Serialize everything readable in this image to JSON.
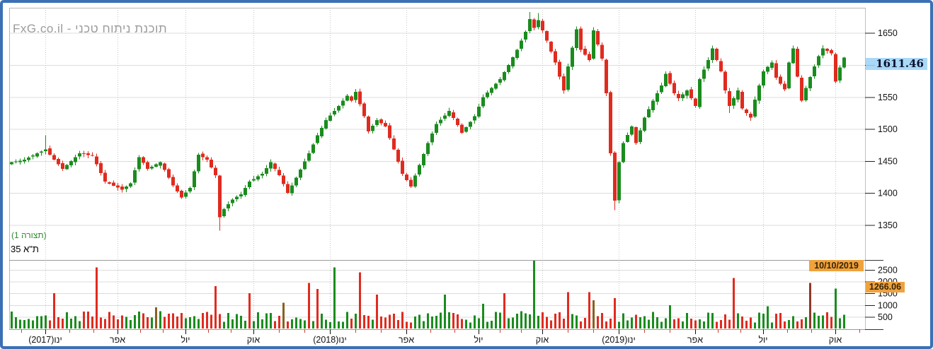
{
  "watermark": {
    "text": "FxG.co.il - תוכנת ניתוח טכני"
  },
  "panel": {
    "config_label": "(תצורה 1)",
    "instrument_label": "ת\"א 35"
  },
  "price_marker": {
    "value": "1611.46"
  },
  "event_markers": {
    "date": "10/10/2019",
    "volume": "1266.06"
  },
  "colors": {
    "up": "#1a8c1e",
    "down": "#e02b1f",
    "brown": "#8a6020",
    "darkred": "#8a3a28",
    "grid": "#dcdcdc",
    "vgrid": "#c8c8c8",
    "axis_text": "#111111",
    "dimmed_tick_text": "#8796a0",
    "minor_tick": "#cc4433",
    "marker_orange": "#f0a23c",
    "marker_blue": "#9ed4f6",
    "frame_border": "#3b70b5"
  },
  "chart_data": {
    "type": "candlestick+volume",
    "instrument": "ת\"א 35",
    "last_price": 1611.46,
    "marked_date": "10/10/2019",
    "marked_volume": 1266.06,
    "candle_count": 197,
    "price_axis": {
      "ticks": [
        1650,
        1600,
        1550,
        1500,
        1450,
        1400,
        1350
      ],
      "dimmed_tick": 1600,
      "range": [
        1335,
        1690
      ]
    },
    "volume_axis": {
      "ticks": [
        2500,
        2000,
        1500,
        1000,
        500
      ],
      "range": [
        0,
        2950
      ]
    },
    "x_labels": [
      {
        "i": 8,
        "label": "ינו(2017)"
      },
      {
        "i": 25,
        "label": "אפר"
      },
      {
        "i": 41,
        "label": "יול"
      },
      {
        "i": 57,
        "label": "אוק"
      },
      {
        "i": 75,
        "label": "ינו(2018)"
      },
      {
        "i": 93,
        "label": "אפר"
      },
      {
        "i": 110,
        "label": "יול"
      },
      {
        "i": 125,
        "label": "אוק"
      },
      {
        "i": 143,
        "label": "ינו(2019)"
      },
      {
        "i": 161,
        "label": "אפר"
      },
      {
        "i": 177,
        "label": "יול"
      },
      {
        "i": 194,
        "label": "אוק"
      }
    ],
    "waypoints": [
      [
        0,
        1448
      ],
      [
        3,
        1452
      ],
      [
        6,
        1462
      ],
      [
        8,
        1468
      ],
      [
        10,
        1452
      ],
      [
        12,
        1438
      ],
      [
        16,
        1462
      ],
      [
        19,
        1458
      ],
      [
        22,
        1418
      ],
      [
        26,
        1405
      ],
      [
        28,
        1415
      ],
      [
        30,
        1456
      ],
      [
        32,
        1438
      ],
      [
        35,
        1448
      ],
      [
        38,
        1412
      ],
      [
        40,
        1393
      ],
      [
        42,
        1408
      ],
      [
        44,
        1460
      ],
      [
        46,
        1452
      ],
      [
        48,
        1428
      ],
      [
        49,
        1362
      ],
      [
        50,
        1375
      ],
      [
        52,
        1390
      ],
      [
        54,
        1398
      ],
      [
        56,
        1418
      ],
      [
        59,
        1430
      ],
      [
        61,
        1448
      ],
      [
        63,
        1428
      ],
      [
        65,
        1400
      ],
      [
        67,
        1424
      ],
      [
        70,
        1462
      ],
      [
        72,
        1490
      ],
      [
        74,
        1514
      ],
      [
        76,
        1528
      ],
      [
        79,
        1552
      ],
      [
        80,
        1544
      ],
      [
        81,
        1558
      ],
      [
        83,
        1520
      ],
      [
        84,
        1496
      ],
      [
        86,
        1514
      ],
      [
        88,
        1504
      ],
      [
        90,
        1468
      ],
      [
        92,
        1430
      ],
      [
        94,
        1410
      ],
      [
        96,
        1444
      ],
      [
        98,
        1478
      ],
      [
        100,
        1508
      ],
      [
        103,
        1528
      ],
      [
        105,
        1506
      ],
      [
        106,
        1494
      ],
      [
        109,
        1520
      ],
      [
        111,
        1550
      ],
      [
        113,
        1564
      ],
      [
        115,
        1578
      ],
      [
        117,
        1600
      ],
      [
        119,
        1624
      ],
      [
        121,
        1652
      ],
      [
        122,
        1672
      ],
      [
        123,
        1658
      ],
      [
        124,
        1670
      ],
      [
        126,
        1638
      ],
      [
        128,
        1604
      ],
      [
        130,
        1560
      ],
      [
        131,
        1598
      ],
      [
        133,
        1656
      ],
      [
        134,
        1624
      ],
      [
        136,
        1608
      ],
      [
        137,
        1654
      ],
      [
        139,
        1610
      ],
      [
        140,
        1556
      ],
      [
        141,
        1462
      ],
      [
        142,
        1388
      ],
      [
        143,
        1448
      ],
      [
        144,
        1478
      ],
      [
        146,
        1504
      ],
      [
        147,
        1478
      ],
      [
        149,
        1518
      ],
      [
        151,
        1544
      ],
      [
        153,
        1568
      ],
      [
        154,
        1586
      ],
      [
        156,
        1556
      ],
      [
        157,
        1548
      ],
      [
        159,
        1560
      ],
      [
        161,
        1536
      ],
      [
        162,
        1578
      ],
      [
        164,
        1608
      ],
      [
        165,
        1626
      ],
      [
        167,
        1590
      ],
      [
        168,
        1560
      ],
      [
        169,
        1536
      ],
      [
        171,
        1560
      ],
      [
        172,
        1532
      ],
      [
        174,
        1518
      ],
      [
        175,
        1546
      ],
      [
        177,
        1590
      ],
      [
        179,
        1604
      ],
      [
        180,
        1580
      ],
      [
        182,
        1562
      ],
      [
        183,
        1604
      ],
      [
        184,
        1626
      ],
      [
        185,
        1582
      ],
      [
        186,
        1544
      ],
      [
        187,
        1564
      ],
      [
        189,
        1598
      ],
      [
        190,
        1614
      ],
      [
        191,
        1626
      ],
      [
        193,
        1618
      ],
      [
        194,
        1574
      ],
      [
        195,
        1596
      ],
      [
        196,
        1611.46
      ]
    ],
    "wick_events": [
      {
        "i": 8,
        "high": 1490
      },
      {
        "i": 49,
        "low": 1341
      },
      {
        "i": 122,
        "high": 1683
      },
      {
        "i": 124,
        "high": 1681
      },
      {
        "i": 142,
        "low": 1373
      },
      {
        "i": 169,
        "low": 1525
      },
      {
        "i": 174,
        "low": 1513
      }
    ],
    "volume_spikes": [
      [
        10,
        1500,
        "down"
      ],
      [
        20,
        2600,
        "down"
      ],
      [
        34,
        900,
        "brown"
      ],
      [
        48,
        1800,
        "down"
      ],
      [
        56,
        1500,
        "down"
      ],
      [
        64,
        1100,
        "brown"
      ],
      [
        70,
        1950,
        "down"
      ],
      [
        72,
        1680,
        "down"
      ],
      [
        76,
        2600,
        "up"
      ],
      [
        82,
        2400,
        "down"
      ],
      [
        86,
        1450,
        "down"
      ],
      [
        102,
        1450,
        "up"
      ],
      [
        111,
        1050,
        "up"
      ],
      [
        116,
        1500,
        "down"
      ],
      [
        123,
        2900,
        "up"
      ],
      [
        131,
        1550,
        "down"
      ],
      [
        136,
        1550,
        "down"
      ],
      [
        137,
        1200,
        "brown"
      ],
      [
        142,
        1300,
        "down"
      ],
      [
        155,
        1000,
        "up"
      ],
      [
        170,
        2150,
        "down"
      ],
      [
        178,
        950,
        "up"
      ],
      [
        188,
        1950,
        "darkred"
      ],
      [
        194,
        1700,
        "up"
      ]
    ],
    "seed": 7
  }
}
